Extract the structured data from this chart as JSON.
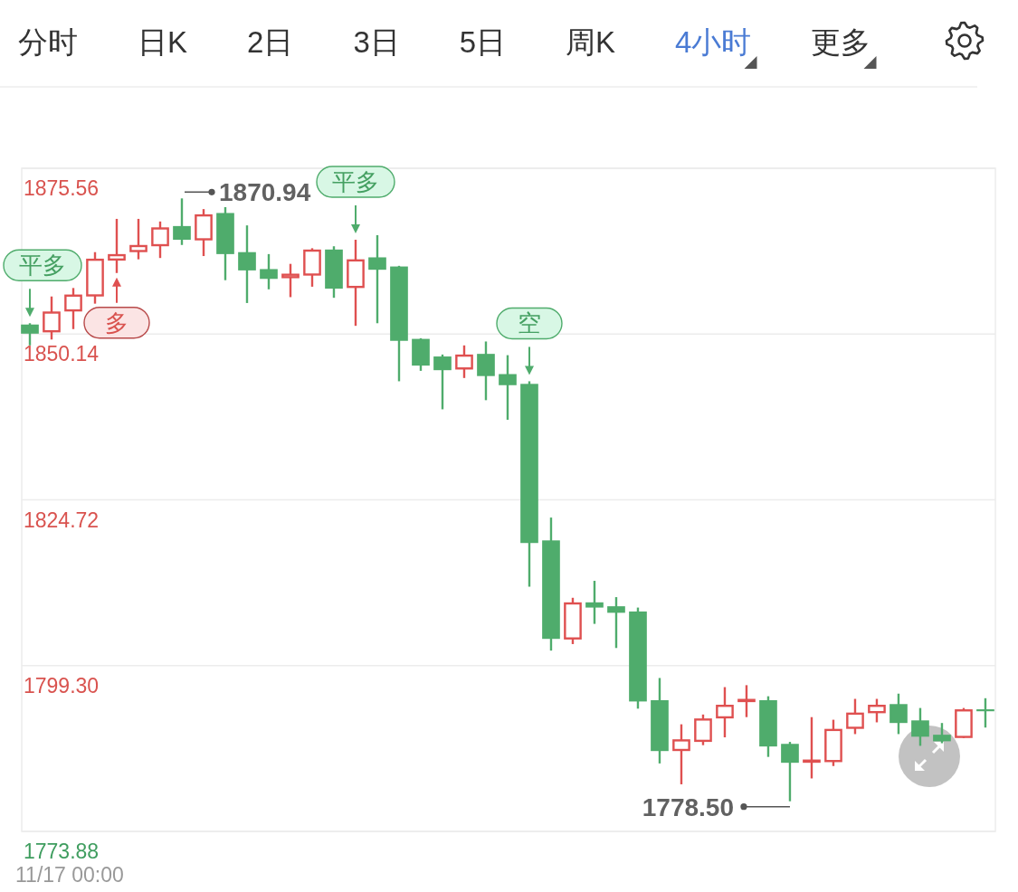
{
  "chart_data": {
    "type": "candlestick",
    "subtitle": "4小时",
    "xlabel": "11/17 00:00",
    "categories": [
      null,
      null,
      null,
      null,
      null,
      null,
      null,
      null,
      null,
      null,
      null,
      null,
      null,
      null,
      null,
      null,
      null,
      null,
      null,
      null,
      null,
      null,
      null,
      null,
      null,
      null,
      null,
      null,
      null,
      null,
      null,
      null,
      null,
      null,
      null,
      null,
      null,
      null,
      null,
      null,
      null,
      null,
      null,
      null,
      null
    ],
    "ohlc": [
      [
        1851.6,
        1851.8,
        1848.4,
        1850.2
      ],
      [
        1850.4,
        1855.9,
        1849.3,
        1853.6
      ],
      [
        1853.6,
        1857.2,
        1850.9,
        1856.2
      ],
      [
        1855.9,
        1862.7,
        1854.8,
        1861.7
      ],
      [
        1861.4,
        1867.8,
        1859.5,
        1862.4
      ],
      [
        1862.7,
        1867.8,
        1861.6,
        1863.8
      ],
      [
        1863.6,
        1867.4,
        1861.8,
        1866.5
      ],
      [
        1866.7,
        1870.94,
        1863.8,
        1864.6
      ],
      [
        1864.5,
        1869.3,
        1862.1,
        1868.5
      ],
      [
        1868.7,
        1869.6,
        1858.4,
        1862.4
      ],
      [
        1862.7,
        1866.8,
        1854.9,
        1859.9
      ],
      [
        1860.1,
        1862.4,
        1857.0,
        1858.6
      ],
      [
        1858.7,
        1860.9,
        1855.8,
        1859.4
      ],
      [
        1859.1,
        1863.3,
        1857.4,
        1863.1
      ],
      [
        1863.1,
        1863.6,
        1855.7,
        1857.1
      ],
      [
        1857.2,
        1864.6,
        1851.4,
        1861.6
      ],
      [
        1861.9,
        1865.3,
        1851.8,
        1860.0
      ],
      [
        1860.5,
        1860.6,
        1842.9,
        1849.1
      ],
      [
        1849.4,
        1849.5,
        1844.5,
        1845.3
      ],
      [
        1846.7,
        1847.0,
        1838.6,
        1844.6
      ],
      [
        1844.7,
        1848.4,
        1843.4,
        1847.0
      ],
      [
        1847.1,
        1849.0,
        1840.0,
        1843.7
      ],
      [
        1844.0,
        1846.9,
        1837.0,
        1842.3
      ],
      [
        1842.5,
        1842.9,
        1811.4,
        1818.1
      ],
      [
        1818.5,
        1822.0,
        1801.6,
        1803.4
      ],
      [
        1803.3,
        1809.7,
        1802.6,
        1809.0
      ],
      [
        1809.0,
        1812.3,
        1805.7,
        1808.2
      ],
      [
        1808.4,
        1809.8,
        1802.0,
        1807.4
      ],
      [
        1807.6,
        1808.2,
        1792.7,
        1793.8
      ],
      [
        1794.0,
        1797.4,
        1784.3,
        1786.2
      ],
      [
        1786.2,
        1790.3,
        1781.1,
        1788.0
      ],
      [
        1787.6,
        1791.8,
        1787.1,
        1791.2
      ],
      [
        1791.2,
        1796.0,
        1788.3,
        1793.3
      ],
      [
        1793.7,
        1796.3,
        1791.4,
        1794.2
      ],
      [
        1794.0,
        1794.6,
        1785.3,
        1786.9
      ],
      [
        1787.3,
        1787.6,
        1778.5,
        1784.4
      ],
      [
        1784.4,
        1791.4,
        1782.0,
        1784.9
      ],
      [
        1784.5,
        1791.0,
        1783.9,
        1789.6
      ],
      [
        1789.6,
        1794.2,
        1788.8,
        1792.1
      ],
      [
        1792.0,
        1794.2,
        1790.6,
        1793.3
      ],
      [
        1793.4,
        1795.0,
        1788.8,
        1790.5
      ],
      [
        1790.9,
        1792.8,
        1787.0,
        1788.4
      ],
      [
        1788.7,
        1790.5,
        1787.4,
        1787.7
      ],
      [
        1788.2,
        1792.8,
        1788.2,
        1792.6
      ],
      [
        1792.6,
        1794.3,
        1789.8,
        1792.3
      ]
    ],
    "colors": [
      "#4fac6c",
      "#df5050",
      "#df5050",
      "#df5050",
      "#df5050",
      "#df5050",
      "#df5050",
      "#4fac6c",
      "#df5050",
      "#4fac6c",
      "#4fac6c",
      "#4fac6c",
      "#df5050",
      "#df5050",
      "#4fac6c",
      "#df5050",
      "#4fac6c",
      "#4fac6c",
      "#4fac6c",
      "#4fac6c",
      "#df5050",
      "#4fac6c",
      "#4fac6c",
      "#4fac6c",
      "#4fac6c",
      "#df5050",
      "#4fac6c",
      "#4fac6c",
      "#4fac6c",
      "#4fac6c",
      "#df5050",
      "#df5050",
      "#df5050",
      "#df5050",
      "#4fac6c",
      "#4fac6c",
      "#df5050",
      "#df5050",
      "#df5050",
      "#df5050",
      "#4fac6c",
      "#4fac6c",
      "#4fac6c",
      "#df5050",
      "#4fac6c"
    ],
    "ylim": [
      1773.88,
      1875.56
    ],
    "yticks": [
      1773.88,
      {
        "value": 1799.3,
        "label": "1799.30"
      },
      1824.72,
      1850.14,
      1875.56
    ],
    "grid": "y",
    "annotations": [
      "分时",
      "日K",
      "2日",
      "3日",
      "5日",
      "周K",
      "更多",
      {
        "text": "平多",
        "y": 1851.8
      },
      {
        "text": "多",
        "y": 1859.5
      },
      {
        "text": "平多",
        "y": 1864.6
      },
      {
        "text": "空",
        "y": 1842.9
      },
      "1870.94",
      "1778.50"
    ]
  }
}
